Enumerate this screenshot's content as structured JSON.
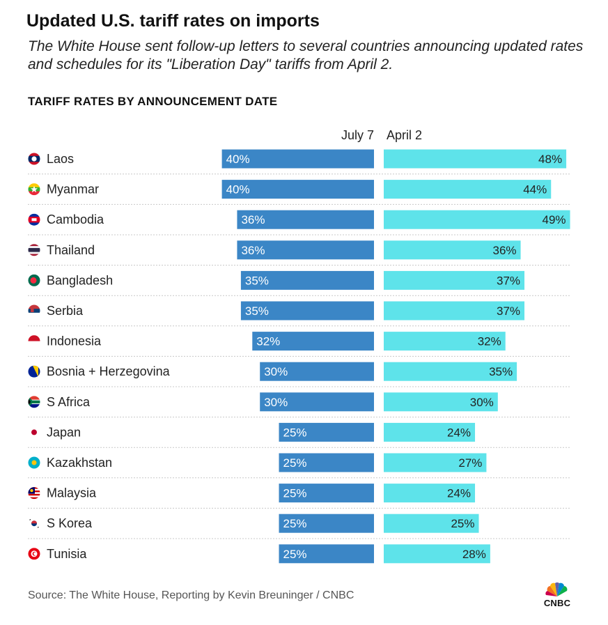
{
  "header": {
    "title": "Updated U.S. tariff rates on imports",
    "subtitle": "The White House sent follow-up letters to several countries announcing updated rates and schedules for its \"Liberation Day\" tariffs from April 2.",
    "section_heading": "TARIFF RATES BY ANNOUNCEMENT DATE"
  },
  "footer": {
    "source": "Source: The White House, Reporting by Kevin Breuninger / CNBC",
    "logo_text": "CNBC"
  },
  "colors": {
    "july": "#3b86c6",
    "april": "#5ee3ea",
    "divider": "#c8c8c8",
    "text": "#222222"
  },
  "chart_data": {
    "type": "bar",
    "title": "TARIFF RATES BY ANNOUNCEMENT DATE",
    "xlabel": "",
    "ylabel": "",
    "unit": "%",
    "xlim": [
      0,
      50
    ],
    "legend_position": "top",
    "categories": [
      "Laos",
      "Myanmar",
      "Cambodia",
      "Thailand",
      "Bangladesh",
      "Serbia",
      "Indonesia",
      "Bosnia + Herzegovina",
      "S Africa",
      "Japan",
      "Kazakhstan",
      "Malaysia",
      "S Korea",
      "Tunisia"
    ],
    "series": [
      {
        "name": "July 7",
        "direction": "left",
        "values": [
          40,
          40,
          36,
          36,
          35,
          35,
          32,
          30,
          30,
          25,
          25,
          25,
          25,
          25
        ]
      },
      {
        "name": "April 2",
        "direction": "right",
        "values": [
          48,
          44,
          49,
          36,
          37,
          37,
          32,
          35,
          30,
          24,
          27,
          24,
          25,
          28
        ]
      }
    ],
    "flags": [
      "laos-flag-icon",
      "myanmar-flag-icon",
      "cambodia-flag-icon",
      "thailand-flag-icon",
      "bangladesh-flag-icon",
      "serbia-flag-icon",
      "indonesia-flag-icon",
      "bosnia-flag-icon",
      "south-africa-flag-icon",
      "japan-flag-icon",
      "kazakhstan-flag-icon",
      "malaysia-flag-icon",
      "south-korea-flag-icon",
      "tunisia-flag-icon"
    ]
  }
}
